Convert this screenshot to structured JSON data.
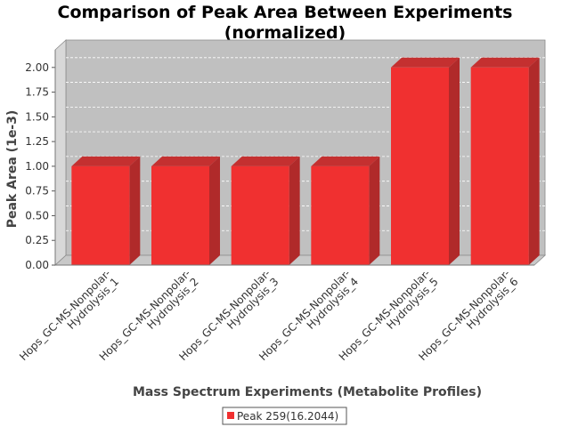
{
  "chart_data": {
    "type": "bar",
    "title": [
      "Comparison of Peak Area Between Experiments",
      "(normalized)"
    ],
    "xlabel": "Mass Spectrum Experiments (Metabolite Profiles)",
    "ylabel": "Peak Area (1e-3)",
    "categories": [
      [
        "Hops_GC-MS-Nonpolar-",
        "Hydrolysis_1"
      ],
      [
        "Hops_GC-MS-Nonpolar-",
        "Hydrolysis_2"
      ],
      [
        "Hops_GC-MS-Nonpolar-",
        "Hydrolysis_3"
      ],
      [
        "Hops_GC-MS-Nonpolar-",
        "Hydrolysis_4"
      ],
      [
        "Hops_GC-MS-Nonpolar-",
        "Hydrolysis_5"
      ],
      [
        "Hops_GC-MS-Nonpolar-",
        "Hydrolysis_6"
      ]
    ],
    "series": [
      {
        "name": "Peak 259(16.2044)",
        "values": [
          1.0,
          1.0,
          1.0,
          1.0,
          2.0,
          2.0
        ],
        "color": "#f03030"
      }
    ],
    "yticks": [
      "0.00",
      "0.25",
      "0.50",
      "0.75",
      "1.00",
      "1.25",
      "1.50",
      "1.75",
      "2.00"
    ],
    "ylim": [
      0,
      2.1
    ],
    "grid": true,
    "legend": "bottom-center",
    "style": "3d-bar"
  }
}
